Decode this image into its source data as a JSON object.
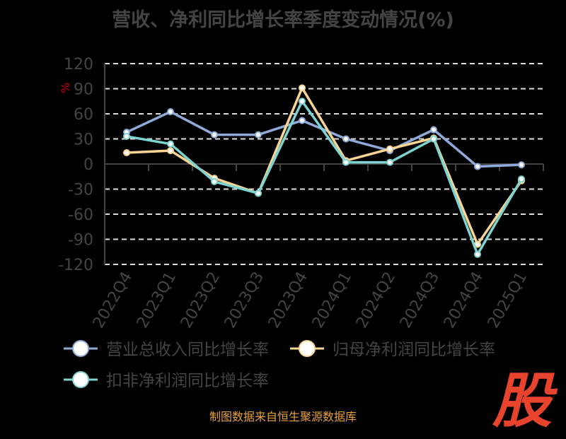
{
  "chart_data": {
    "type": "line",
    "title": "营收、净利同比增长率季度变动情况(%)",
    "ylabel": "%",
    "xlabel": "",
    "categories": [
      "2022Q4",
      "2023Q1",
      "2023Q2",
      "2023Q3",
      "2023Q4",
      "2024Q1",
      "2024Q2",
      "2024Q3",
      "2024Q4",
      "2025Q1"
    ],
    "ylim": [
      -120,
      120
    ],
    "yticks": [
      120,
      90,
      60,
      30,
      0,
      -30,
      -60,
      -90,
      -120
    ],
    "grid": true,
    "legend_position": "bottom",
    "series": [
      {
        "name": "营业总收入同比增长率",
        "color": "#8fa9d8",
        "values": [
          38,
          62.5,
          35,
          35,
          52,
          30,
          16,
          41,
          -3,
          -1
        ]
      },
      {
        "name": "归母净利润同比增长率",
        "color": "#f9d492",
        "values": [
          13.5,
          16,
          -17,
          -35,
          91,
          4,
          18,
          31,
          -96,
          -20
        ]
      },
      {
        "name": "扣非净利润同比增长率",
        "color": "#7dd3d0",
        "values": [
          33,
          24,
          -21,
          -35,
          75,
          2,
          2,
          30,
          -108,
          -18
        ]
      }
    ]
  },
  "footer": "制图数据来自恒生聚源数据库",
  "logo_text": "股"
}
